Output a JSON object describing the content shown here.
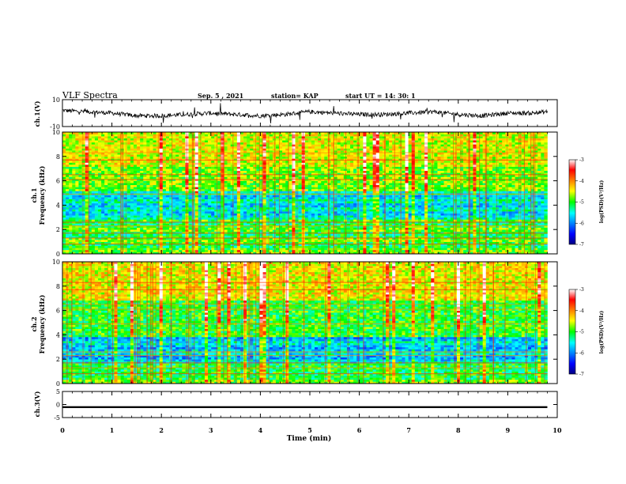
{
  "header": {
    "title": "VLF Spectra",
    "date": "Sep. 5  , 2021",
    "station": "station= KAP",
    "start": "start  UT  =   14: 30: 1"
  },
  "chart_data": [
    {
      "type": "line",
      "panel": "ch1-waveform",
      "ylabel": "ch.1(V)",
      "ylim": [
        -10,
        10
      ],
      "yticks": [
        "10",
        "-10"
      ],
      "xlim": [
        0,
        10
      ],
      "description_series": "noisy voltage trace around ~0 V to +5 V",
      "series": [
        {
          "x": [
            0,
            0.5,
            1,
            1.5,
            2,
            2.5,
            3,
            3.5,
            4,
            4.5,
            5,
            5.5,
            6,
            6.5,
            7,
            7.5,
            8,
            8.5,
            9,
            9.5,
            9.8
          ],
          "y": [
            2,
            1,
            0,
            -2,
            -2,
            -1,
            0,
            -1,
            -2,
            -1,
            1,
            0,
            -1,
            -1,
            0,
            1,
            -1,
            -2,
            0,
            0,
            1
          ]
        }
      ]
    },
    {
      "type": "heatmap",
      "panel": "ch1-spectrogram",
      "ylabel_top": "ch.1",
      "ylabel": "Frequency (kHz)",
      "ylim": [
        0,
        10
      ],
      "yticks": [
        "0",
        "2",
        "4",
        "6",
        "8",
        "10"
      ],
      "xlim": [
        0,
        10
      ],
      "colorbar": {
        "label": "log(PSD)(V²/Hz)",
        "range": [
          -7,
          -3
        ],
        "ticks": [
          "-3",
          "-4",
          "-5",
          "-6",
          "-7"
        ]
      }
    },
    {
      "type": "heatmap",
      "panel": "ch2-spectrogram",
      "ylabel_top": "ch.2",
      "ylabel": "Frequency (kHz)",
      "ylim": [
        0,
        10
      ],
      "yticks": [
        "0",
        "2",
        "4",
        "6",
        "8",
        "10"
      ],
      "xlim": [
        0,
        10
      ],
      "colorbar": {
        "label": "log(PSD)(V²/Hz)",
        "range": [
          -7,
          -3
        ],
        "ticks": [
          "-3",
          "-4",
          "-5",
          "-6",
          "-7"
        ]
      }
    },
    {
      "type": "line",
      "panel": "ch3-waveform",
      "ylabel": "ch.3(V)",
      "ylim": [
        -5,
        5
      ],
      "yticks": [
        "5",
        "0",
        "-5"
      ],
      "xlim": [
        0,
        10
      ],
      "series": [
        {
          "x": [
            0,
            9.8
          ],
          "y": [
            -1,
            -1
          ]
        }
      ]
    }
  ],
  "xaxis": {
    "label": "Time  (min)",
    "ticks": [
      "0",
      "1",
      "2",
      "3",
      "4",
      "5",
      "6",
      "7",
      "8",
      "9",
      "10"
    ]
  },
  "colors": {
    "jet": [
      "#000080",
      "#0000ff",
      "#00ffff",
      "#ffff00",
      "#ff0000"
    ],
    "trace": "#000000"
  }
}
